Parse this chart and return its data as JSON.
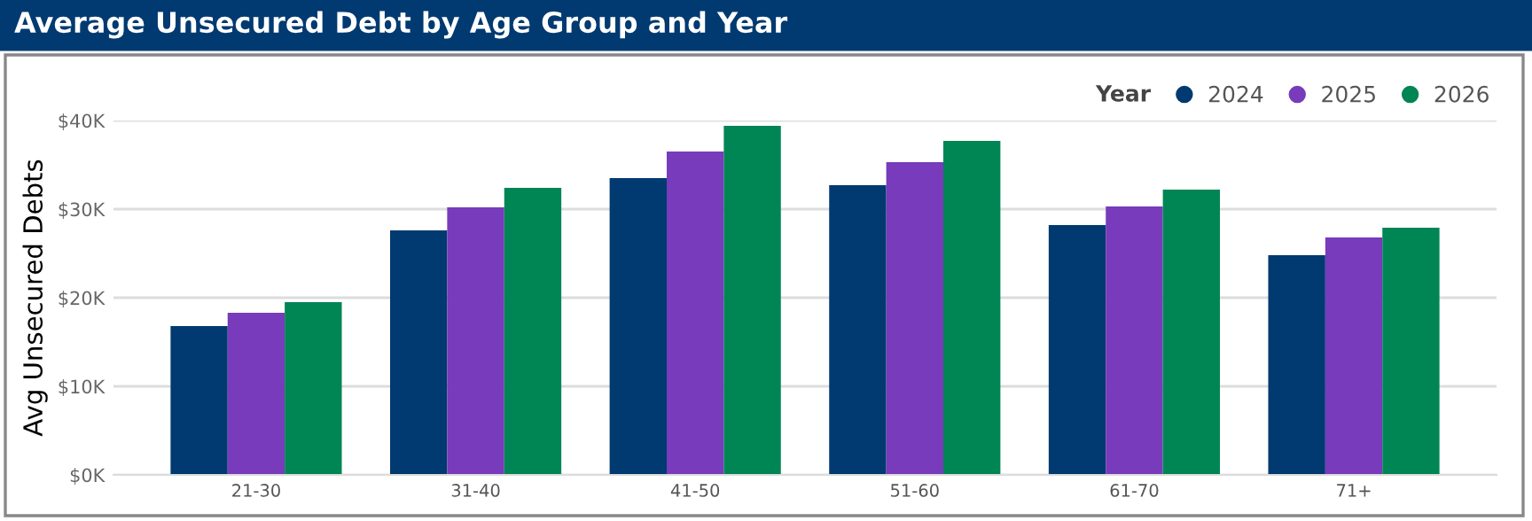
{
  "chart_data": {
    "type": "bar",
    "title": "Average Unsecured Debt by Age Group and Year",
    "ylabel": "Avg Unsecured Debts",
    "legend_title": "Year",
    "categories": [
      "21-30",
      "31-40",
      "41-50",
      "51-60",
      "61-70",
      "71+"
    ],
    "series": [
      {
        "name": "2024",
        "color": "#003a70",
        "values": [
          16800,
          27600,
          33500,
          32700,
          28200,
          24800
        ]
      },
      {
        "name": "2025",
        "color": "#773bbb",
        "values": [
          18300,
          30200,
          36500,
          35300,
          30300,
          26800
        ]
      },
      {
        "name": "2026",
        "color": "#008555",
        "values": [
          19500,
          32400,
          39400,
          37700,
          32200,
          27900
        ]
      }
    ],
    "ylim": [
      0,
      40000
    ],
    "yticks": [
      {
        "value": 0,
        "label": "$0K"
      },
      {
        "value": 10000,
        "label": "$10K"
      },
      {
        "value": 20000,
        "label": "$20K"
      },
      {
        "value": 30000,
        "label": "$30K"
      },
      {
        "value": 40000,
        "label": "$40K"
      }
    ],
    "grid": "y",
    "legend": "top right"
  }
}
